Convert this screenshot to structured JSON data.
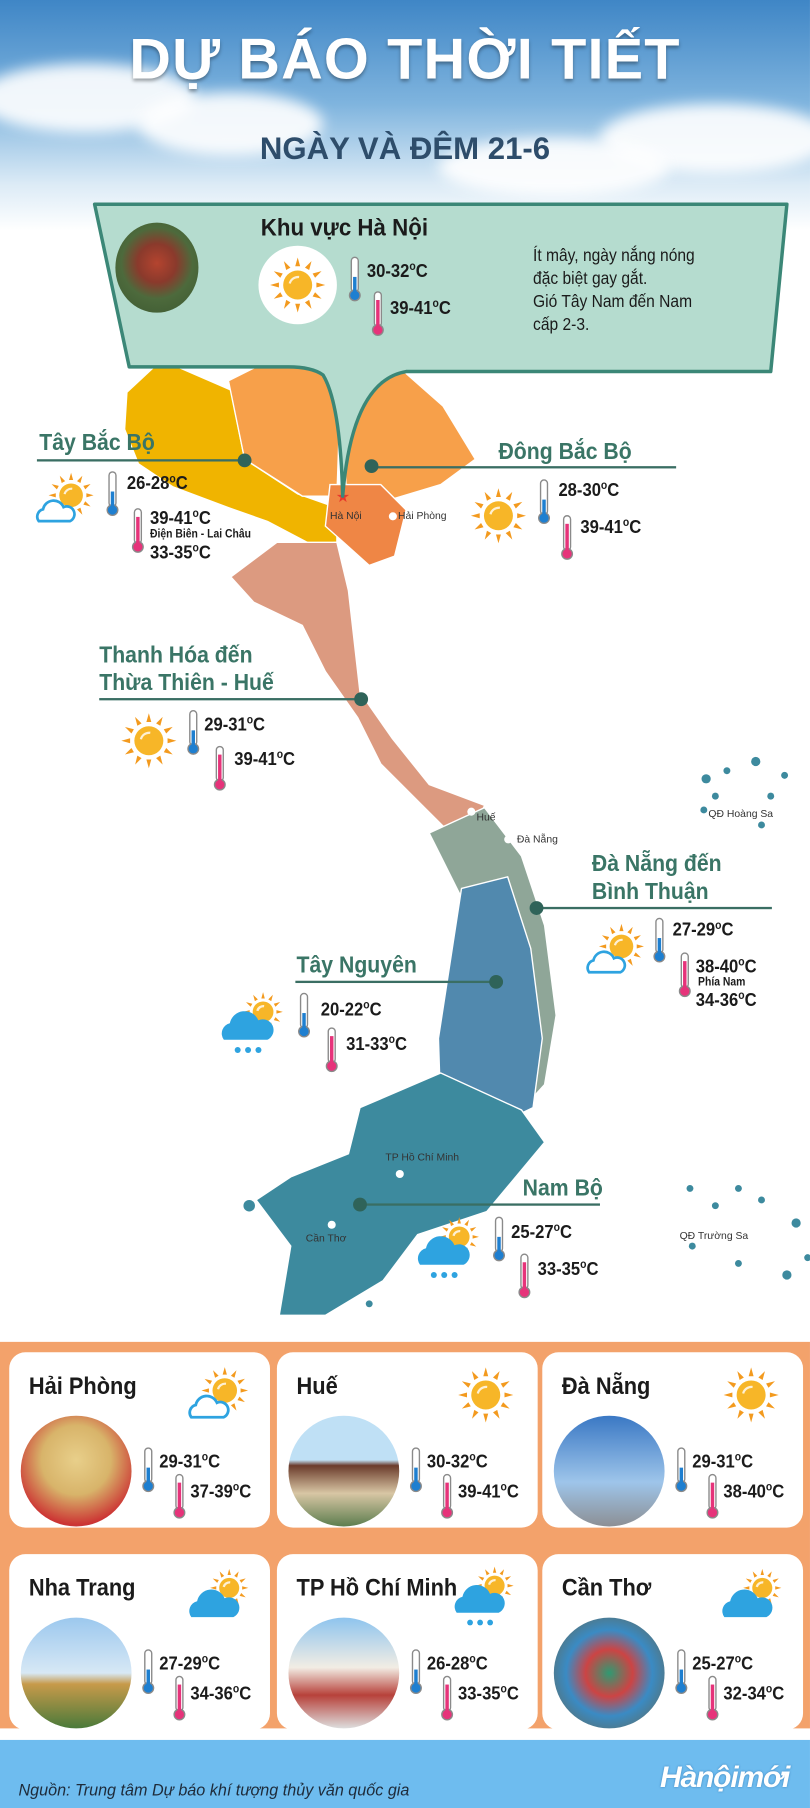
{
  "header": {
    "title": "DỰ BÁO THỜI TIẾT",
    "subtitle": "NGÀY VÀ ĐÊM 21-6"
  },
  "colors": {
    "cold": "#1e7fd0",
    "hot": "#e6337a",
    "sun": "#f7b628",
    "rays": "#f39a1e",
    "cloud": "#2ea3e0",
    "teal_text": "#3a7566",
    "grid_bg": "#f3a26b",
    "footer_bg": "#6ebcef"
  },
  "hanoi": {
    "title": "Khu vực Hà Nội",
    "icon": "sun",
    "low": "30-32",
    "high": "39-41",
    "unit": "°C",
    "unit_o": "o",
    "unit_c": "C",
    "description": [
      "Ít mây, ngày nắng nóng",
      "đặc biệt gay gắt.",
      "Gió Tây Nam đến Nam",
      "cấp 2-3."
    ]
  },
  "regions": {
    "tay_bac": {
      "label": [
        "Tây Bắc Bộ"
      ],
      "icon": "sun-cloud-outline",
      "low": "26-28",
      "high": "39-41",
      "note": "Điện Biên - Lai Châu",
      "extra": "33-35"
    },
    "dong_bac": {
      "label": [
        "Đông Bắc Bộ"
      ],
      "icon": "sun",
      "low": "28-30",
      "high": "39-41"
    },
    "thanh_hoa": {
      "label": [
        "Thanh Hóa đến",
        "Thừa Thiên - Huế"
      ],
      "icon": "sun",
      "low": "29-31",
      "high": "39-41"
    },
    "da_nang": {
      "label": [
        "Đà Nẵng đến",
        "Bình Thuận"
      ],
      "icon": "sun-cloud-outline",
      "low": "27-29",
      "high": "38-40",
      "note": "Phía Nam",
      "extra": "34-36"
    },
    "tay_nguyen": {
      "label": [
        "Tây Nguyên"
      ],
      "icon": "rain-cloud-sun",
      "low": "20-22",
      "high": "31-33"
    },
    "nam_bo": {
      "label": [
        "Nam Bộ"
      ],
      "icon": "rain-cloud-sun",
      "low": "25-27",
      "high": "33-35"
    }
  },
  "map_labels": {
    "ha_noi": "Hà Nội",
    "hai_phong": "Hải Phòng",
    "hue": "Huế",
    "da_nang": "Đà Nẵng",
    "hcm": "TP Hồ Chí Minh",
    "can_tho": "Cần Thơ",
    "hoang_sa": "QĐ Hoàng Sa",
    "truong_sa": "QĐ Trường Sa"
  },
  "cities": [
    {
      "name": "Hải Phòng",
      "icon": "sun-cloud-outline",
      "low": "29-31",
      "high": "37-39"
    },
    {
      "name": "Huế",
      "icon": "sun",
      "low": "30-32",
      "high": "39-41"
    },
    {
      "name": "Đà Nẵng",
      "icon": "sun",
      "low": "29-31",
      "high": "38-40"
    },
    {
      "name": "Nha Trang",
      "icon": "cloud-sun",
      "low": "27-29",
      "high": "34-36"
    },
    {
      "name": "TP Hồ Chí Minh",
      "icon": "rain-cloud-sun",
      "low": "26-28",
      "high": "33-35"
    },
    {
      "name": "Cần Thơ",
      "icon": "cloud-sun",
      "low": "25-27",
      "high": "32-34"
    }
  ],
  "footer": {
    "source": "Nguồn: Trung tâm Dự báo khí tượng thủy văn quốc gia",
    "logo": "Hànộimới"
  }
}
